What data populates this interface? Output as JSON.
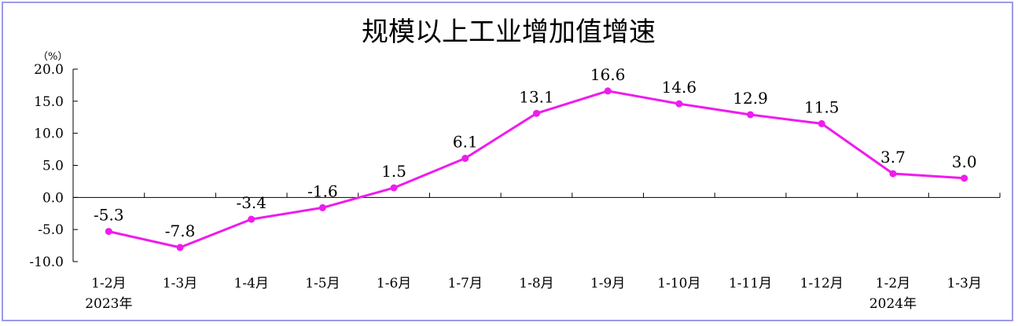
{
  "chart_data": {
    "type": "line",
    "title": "规模以上工业增加值增速",
    "ylabel": "（%）",
    "ylim": [
      -10,
      20
    ],
    "yticks": [
      "20.0",
      "15.0",
      "10.0",
      "5.0",
      "0.0",
      "-5.0",
      "-10.0"
    ],
    "ytick_values": [
      20,
      15,
      10,
      5,
      0,
      -5,
      -10
    ],
    "categories": [
      "1-2月",
      "1-3月",
      "1-4月",
      "1-5月",
      "1-6月",
      "1-7月",
      "1-8月",
      "1-9月",
      "1-10月",
      "1-11月",
      "1-12月",
      "1-2月",
      "1-3月"
    ],
    "year_labels": [
      {
        "index": 0,
        "text": "2023年"
      },
      {
        "index": 11,
        "text": "2024年"
      }
    ],
    "series": [
      {
        "values": [
          -5.3,
          -7.8,
          -3.4,
          -1.6,
          1.5,
          6.1,
          13.1,
          16.6,
          14.6,
          12.9,
          11.5,
          3.7,
          3.0
        ],
        "labels": [
          "-5.3",
          "-7.8",
          "-3.4",
          "-1.6",
          "1.5",
          "6.1",
          "13.1",
          "16.6",
          "14.6",
          "12.9",
          "11.5",
          "3.7",
          "3.0"
        ],
        "color": "#ee1cee"
      }
    ],
    "grid": false,
    "frame_color": "#9b9be8"
  }
}
